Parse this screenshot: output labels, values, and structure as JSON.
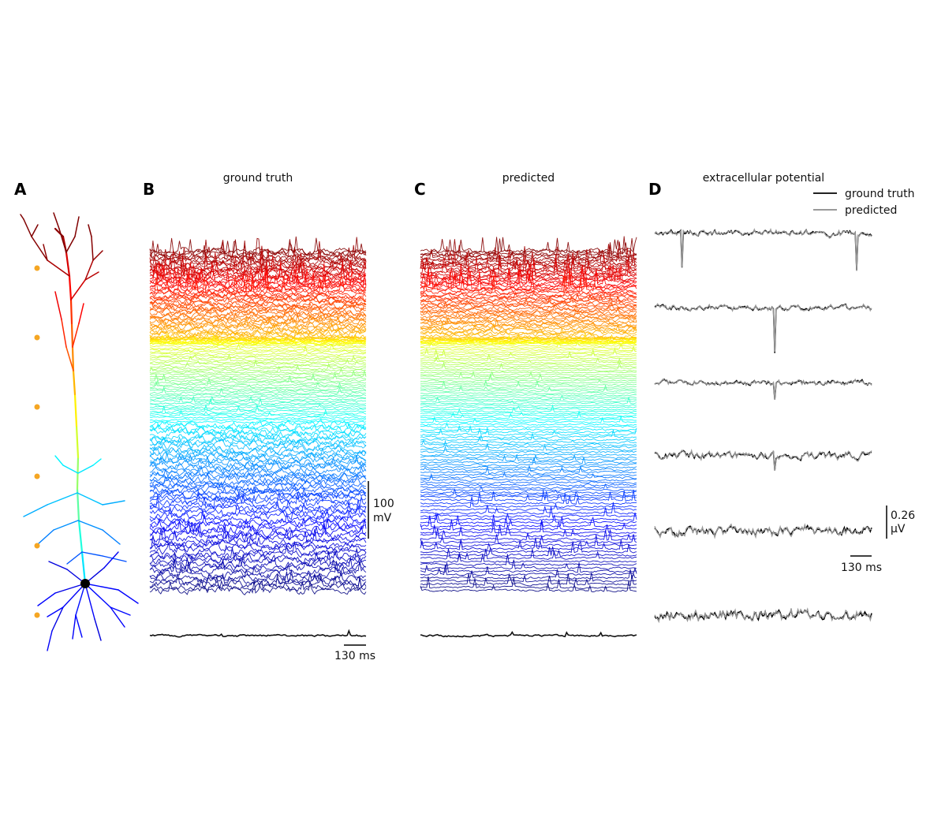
{
  "figure": {
    "panels": [
      "A",
      "B",
      "C",
      "D"
    ]
  },
  "colors": {
    "ground_truth": "#000000",
    "predicted": "#999999",
    "marker": "#f5a623",
    "soma": "#000000",
    "colormap": "jet"
  },
  "chart_data": [
    {
      "panel": "A",
      "type": "diagram",
      "title": "",
      "description_kind": "neuron-morphology",
      "colormap": "jet",
      "recording_sites": 6
    },
    {
      "panel": "B",
      "type": "line",
      "title": "ground truth",
      "series_count": 160,
      "series_color": "jet gradient (dark red top to dark blue bottom)",
      "extra_trace": "black summary trace",
      "scalebar_time": "130 ms",
      "scalebar_voltage_value": "100",
      "scalebar_voltage_unit": "mV"
    },
    {
      "panel": "C",
      "type": "line",
      "title": "predicted",
      "series_count": 160,
      "series_color": "jet gradient (dark red top to dark blue bottom)",
      "extra_trace": "black summary trace"
    },
    {
      "panel": "D",
      "type": "line",
      "title": "extracellular potential",
      "channels": 6,
      "series": [
        {
          "name": "ground truth",
          "color": "#000000"
        },
        {
          "name": "predicted",
          "color": "#999999"
        }
      ],
      "scalebar_time": "130 ms",
      "scalebar_amplitude_value": "0.26",
      "scalebar_amplitude_unit": "μV"
    }
  ]
}
